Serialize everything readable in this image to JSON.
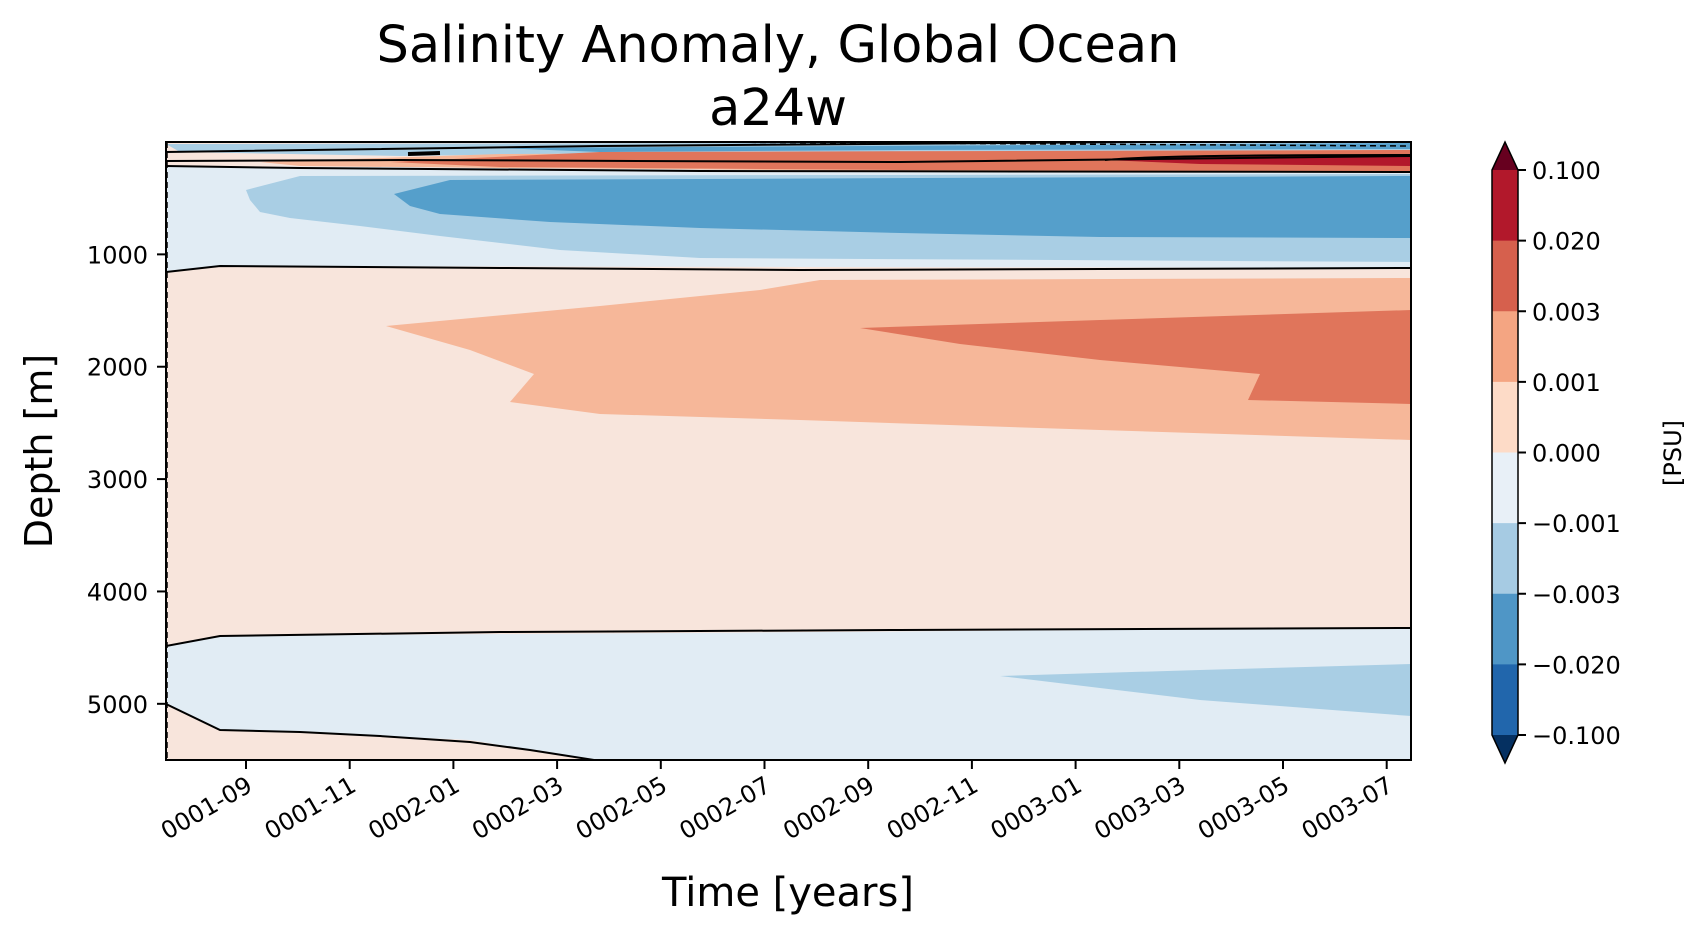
{
  "chart_data": {
    "type": "contourf",
    "title": "Salinity Anomaly, Global Ocean",
    "subtitle": "a24w",
    "xlabel": "Time [years]",
    "ylabel": "Depth [m]",
    "x_tick_labels": [
      "0001-09",
      "0001-11",
      "0002-01",
      "0002-03",
      "0002-05",
      "0002-07",
      "0002-09",
      "0002-11",
      "0003-01",
      "0003-03",
      "0003-05",
      "0003-07"
    ],
    "y_tick_labels": [
      "1000",
      "2000",
      "3000",
      "4000",
      "5000"
    ],
    "y_ticks": [
      1000,
      2000,
      3000,
      4000,
      5000
    ],
    "ylim": [
      5500,
      0
    ],
    "y_inverted": true,
    "colorbar": {
      "label": "[PSU]",
      "tick_labels": [
        "0.100",
        "0.020",
        "0.003",
        "0.001",
        "0.000",
        "−0.001",
        "−0.003",
        "−0.020",
        "−0.100"
      ],
      "levels": [
        0.1,
        0.02,
        0.003,
        0.001,
        0.0,
        -0.001,
        -0.003,
        -0.02,
        -0.1
      ],
      "extend": "both",
      "band_colors": [
        "#b2182b",
        "#d6604d",
        "#f4a582",
        "#fddbc7",
        "#e8f0f7",
        "#a6cbe3",
        "#4f96c6",
        "#2166ac"
      ],
      "extend_colors": {
        "max": "#67001f",
        "min": "#053061"
      }
    },
    "regions": [
      {
        "name": "upper-pos-band-1",
        "level": "0 to 0.001",
        "color": "#f8e5dc"
      },
      {
        "name": "upper-pos-band-2",
        "level": "0.001 to 0.003",
        "color": "#f6b799"
      },
      {
        "name": "upper-pos-band-3",
        "level": "0.003 to 0.02",
        "color": "#e0755b"
      },
      {
        "name": "upper-pos-band-4",
        "level": "0.02 to 0.1",
        "color": "#b2182b"
      },
      {
        "name": "shallow-neg",
        "level": "-0.001 to 0",
        "color": "#e1ecf4"
      },
      {
        "name": "shallow-neg-2",
        "level": "-0.003 to -0.001",
        "color": "#a9cee4"
      },
      {
        "name": "shallow-neg-3",
        "level": "-0.02 to -0.003",
        "color": "#559fcb"
      },
      {
        "name": "deep-pos",
        "level": "0 to 0.001",
        "color": "#f8e5dc"
      },
      {
        "name": "deep-pos-2",
        "level": "0.001 to 0.003",
        "color": "#f6b799"
      },
      {
        "name": "deep-pos-3",
        "level": "0.003 to 0.02",
        "color": "#e0755b"
      },
      {
        "name": "abyssal-neg",
        "level": "-0.001 to 0",
        "color": "#e1ecf4"
      },
      {
        "name": "abyssal-neg-2",
        "level": "-0.003 to -0.001",
        "color": "#a9cee4"
      },
      {
        "name": "bottom-pos",
        "level": "0 to 0.001",
        "color": "#f8e5dc"
      }
    ]
  }
}
